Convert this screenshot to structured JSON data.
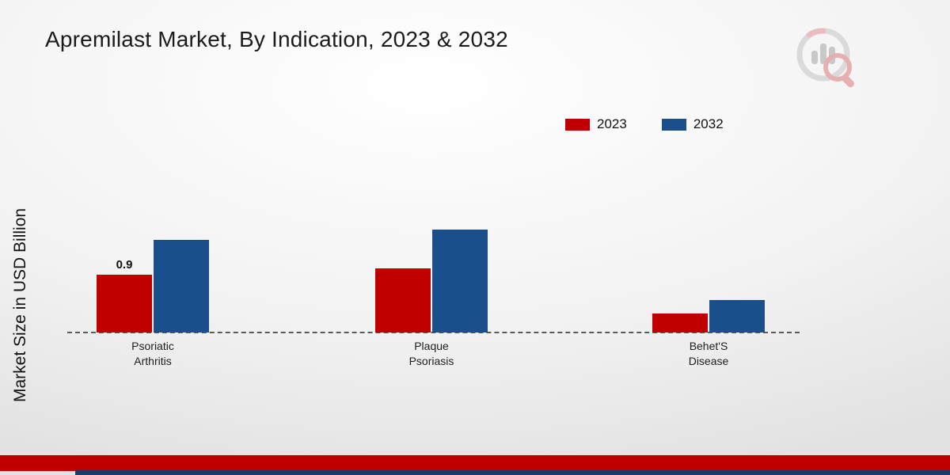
{
  "page": {
    "title": "Apremilast Market, By Indication, 2023 & 2032",
    "ylabel": "Market Size in USD Billion"
  },
  "branding": {
    "logo": "market-research-future-logo",
    "footer_stripe_color": "#c00000",
    "footer_accent_color": "#1a3a6b"
  },
  "chart_data": {
    "type": "bar",
    "title": "Apremilast Market, By Indication, 2023 & 2032",
    "xlabel": "",
    "ylabel": "Market Size in USD Billion",
    "categories": [
      "Psoriatic\nArthritis",
      "Plaque\nPsoriasis",
      "Behet'S\nDisease"
    ],
    "series": [
      {
        "name": "2023",
        "color": "#c00000",
        "values": [
          0.9,
          1.0,
          0.3
        ],
        "data_labels": [
          "0.9",
          "",
          ""
        ]
      },
      {
        "name": "2032",
        "color": "#1b4f8c",
        "values": [
          1.45,
          1.6,
          0.5
        ],
        "data_labels": [
          "",
          "",
          ""
        ]
      }
    ],
    "ylim": [
      0,
      1.8
    ],
    "grid": false,
    "baseline_style": "dashed",
    "legend_position": "top-right"
  }
}
